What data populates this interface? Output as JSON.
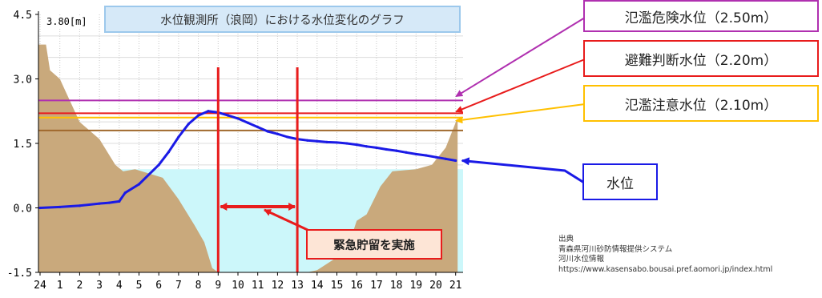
{
  "chart_data": {
    "type": "area",
    "title": "水位観測所（浪岡）における水位変化のグラフ",
    "scale_label": "3.80[m]",
    "ylim": [
      -1.5,
      4.5
    ],
    "y_ticks": [
      {
        "v": 4.5,
        "label": "4.5"
      },
      {
        "v": 3.0,
        "label": "3.0"
      },
      {
        "v": 1.5,
        "label": "1.5"
      },
      {
        "v": 0.0,
        "label": "0.0"
      },
      {
        "v": -1.5,
        "label": "-1.5"
      }
    ],
    "x_ticks": [
      "24",
      "1",
      "2",
      "3",
      "4",
      "5",
      "6",
      "7",
      "8",
      "9",
      "10",
      "11",
      "12",
      "13",
      "14",
      "15",
      "16",
      "17",
      "18",
      "19",
      "20",
      "21"
    ],
    "colors": {
      "water_level": "#1a1ae6",
      "danger": "#b030b0",
      "evacuation": "#e81c1c",
      "caution": "#ffc000",
      "fourth_line": "#a0692d",
      "bank": "#c9a97c",
      "water_fill": "#ccf7fa",
      "emergency": "#e81c1c"
    },
    "thresholds": [
      {
        "key": "danger",
        "label": "氾濫危険水位（2.50m）",
        "value": 2.5
      },
      {
        "key": "evacuation",
        "label": "避難判断水位（2.20m）",
        "value": 2.2
      },
      {
        "key": "caution",
        "label": "氾濫注意水位（2.10m）",
        "value": 2.1
      }
    ],
    "fourth_line_value": 1.8,
    "cross_section_water_surface": 0.9,
    "riverbed_profile": [
      [
        -0.1,
        3.8
      ],
      [
        0.3,
        3.8
      ],
      [
        0.5,
        3.2
      ],
      [
        1.0,
        3.0
      ],
      [
        2.0,
        2.0
      ],
      [
        3.0,
        1.6
      ],
      [
        3.8,
        1.0
      ],
      [
        4.2,
        0.85
      ],
      [
        4.8,
        0.9
      ],
      [
        6.2,
        0.7
      ],
      [
        7.0,
        0.2
      ],
      [
        7.8,
        -0.4
      ],
      [
        8.3,
        -0.8
      ],
      [
        8.7,
        -1.4
      ],
      [
        9.0,
        -1.5
      ],
      [
        9.5,
        -1.5
      ],
      [
        10.0,
        -1.55
      ],
      [
        12.0,
        -1.6
      ],
      [
        13.0,
        -1.55
      ],
      [
        14.0,
        -1.45
      ],
      [
        15.0,
        -1.15
      ],
      [
        15.5,
        -1.0
      ],
      [
        16.0,
        -0.3
      ],
      [
        16.5,
        -0.15
      ],
      [
        17.2,
        0.5
      ],
      [
        17.8,
        0.85
      ],
      [
        19.0,
        0.9
      ],
      [
        19.8,
        1.0
      ],
      [
        20.5,
        1.4
      ],
      [
        21.1,
        2.1
      ],
      [
        21.1,
        -1.5
      ],
      [
        -0.1,
        -1.5
      ]
    ],
    "series": [
      {
        "name": "水位",
        "x": [
          0,
          1,
          2,
          3,
          3.5,
          4,
          4.3,
          5,
          6,
          6.5,
          7,
          7.5,
          8,
          8.5,
          9,
          9.5,
          10,
          10.5,
          11,
          11.5,
          12,
          12.5,
          13,
          13.5,
          14,
          14.5,
          15,
          15.5,
          16,
          16.5,
          17,
          17.5,
          18,
          18.5,
          19,
          19.5,
          20,
          20.5,
          21
        ],
        "values": [
          0.0,
          0.02,
          0.05,
          0.1,
          0.12,
          0.15,
          0.35,
          0.55,
          1.0,
          1.3,
          1.65,
          1.95,
          2.15,
          2.25,
          2.22,
          2.15,
          2.08,
          1.98,
          1.88,
          1.78,
          1.72,
          1.65,
          1.6,
          1.57,
          1.55,
          1.53,
          1.52,
          1.5,
          1.47,
          1.43,
          1.4,
          1.36,
          1.33,
          1.29,
          1.25,
          1.22,
          1.18,
          1.14,
          1.1
        ]
      }
    ],
    "emergency_storage": {
      "label": "緊急貯留を実施",
      "start": 9,
      "end": 13
    }
  },
  "callouts": {
    "danger": "氾濫危険水位（2.50m）",
    "evacuation": "避難判断水位（2.20m）",
    "caution": "氾濫注意水位（2.10m）",
    "water": "水位"
  },
  "source": {
    "heading": "出典",
    "line1": "青森県河川砂防情報提供システム",
    "line2": "河川水位情報",
    "url": "https://www.kasensabo.bousai.pref.aomori.jp/index.html"
  }
}
